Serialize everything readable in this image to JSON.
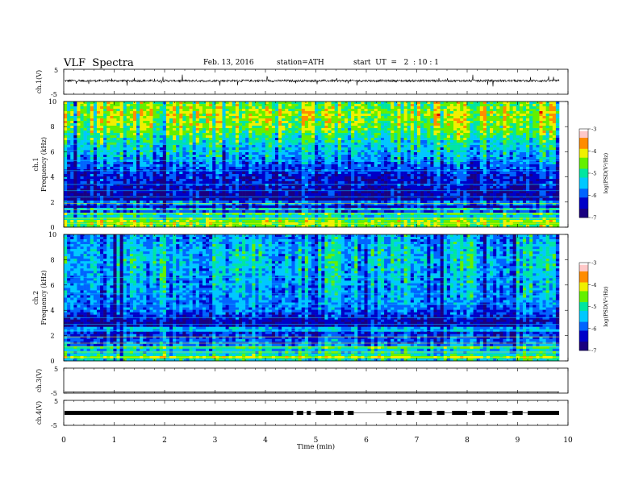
{
  "header": {
    "title": "VLF  Spectra",
    "date": "Feb. 13, 2016",
    "station": "station=ATH",
    "start": "start  UT  =   2  : 10 : 1"
  },
  "chart_data": [
    {
      "type": "line",
      "id": "ch1_waveform",
      "ylabel": "ch.1(V)",
      "ylim": [
        -5,
        5
      ],
      "yticks": [
        "5",
        "-5"
      ],
      "xlim": [
        0,
        10
      ],
      "description_values": "noisy waveform around ~+0.5 V with spikes reaching about ±2.5 V"
    },
    {
      "type": "heatmap",
      "id": "ch1_spectrogram",
      "ylabel_line1": "ch.1",
      "ylabel_line2": "Frequency  (kHz)",
      "ylim": [
        0,
        10
      ],
      "yticks": [
        "0",
        "2",
        "4",
        "6",
        "8",
        "10"
      ],
      "xlim": [
        0,
        9.8
      ],
      "colorbar": {
        "label": "log(PSD(V²/Hz)",
        "ticks": [
          "-3",
          "-4",
          "-5",
          "-6",
          "-7"
        ],
        "range": [
          -7,
          -3
        ]
      },
      "profile": [
        [
          0,
          -4.6
        ],
        [
          0.5,
          -4.4
        ],
        [
          1,
          -5.6
        ],
        [
          1.5,
          -6.3
        ],
        [
          2,
          -6.6
        ],
        [
          2.5,
          -6.5
        ],
        [
          3,
          -6.4
        ],
        [
          3.5,
          -6.3
        ],
        [
          4,
          -6.3
        ],
        [
          5,
          -5.8
        ],
        [
          6,
          -5.4
        ],
        [
          7,
          -5.0
        ],
        [
          8,
          -4.5
        ],
        [
          9,
          -4.3
        ],
        [
          10,
          -4.6
        ]
      ]
    },
    {
      "type": "heatmap",
      "id": "ch2_spectrogram",
      "ylabel_line1": "ch.2",
      "ylabel_line2": "Frequency  (kHz)",
      "ylim": [
        0,
        10
      ],
      "yticks": [
        "0",
        "2",
        "4",
        "6",
        "8",
        "10"
      ],
      "xlim": [
        0,
        9.8
      ],
      "colorbar": {
        "label": "log(PSD(V²/Hz)",
        "ticks": [
          "-3",
          "-4",
          "-5",
          "-6",
          "-7"
        ],
        "range": [
          -7,
          -3
        ]
      },
      "profile": [
        [
          0,
          -5.2
        ],
        [
          0.5,
          -5.0
        ],
        [
          1,
          -5.6
        ],
        [
          1.5,
          -5.8
        ],
        [
          2,
          -6.0
        ],
        [
          2.5,
          -6.3
        ],
        [
          3,
          -6.5
        ],
        [
          3.5,
          -6.2
        ],
        [
          4,
          -5.8
        ],
        [
          5,
          -5.6
        ],
        [
          6,
          -5.5
        ],
        [
          7,
          -5.4
        ],
        [
          8,
          -5.3
        ],
        [
          9,
          -5.4
        ],
        [
          10,
          -5.6
        ]
      ]
    },
    {
      "type": "line",
      "id": "ch3_waveform",
      "ylabel": "ch.3(V)",
      "ylim": [
        -5,
        5
      ],
      "yticks": [
        "5",
        "-5"
      ],
      "xlim": [
        0,
        10
      ],
      "values_note": "flat near -5 V"
    },
    {
      "type": "line",
      "id": "ch4_waveform",
      "ylabel": "ch.4(V)",
      "ylim": [
        -5,
        5
      ],
      "yticks": [
        "5",
        "-5"
      ],
      "xlim": [
        0,
        10
      ],
      "values_note": "signal toggling around 0 V"
    }
  ],
  "xaxis": {
    "label": "Time  (min)",
    "ticks": [
      "0",
      "1",
      "2",
      "3",
      "4",
      "5",
      "6",
      "7",
      "8",
      "9",
      "10"
    ]
  },
  "colors": {
    "colormap": [
      "#000000",
      "#1a0080",
      "#0000c8",
      "#0064ff",
      "#00c8ff",
      "#00e6a0",
      "#64f000",
      "#f0f000",
      "#ff8c00",
      "#e60000",
      "#ffc8c8",
      "#ffffff"
    ]
  }
}
